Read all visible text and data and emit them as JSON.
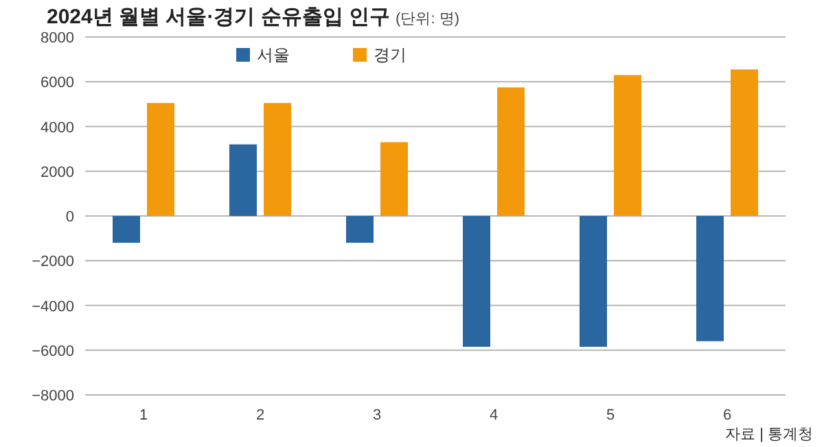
{
  "chart_data": {
    "type": "bar",
    "title": "2024년 월별 서울·경기 순유출입 인구",
    "subtitle": "(단위: 명)",
    "categories": [
      "1",
      "2",
      "3",
      "4",
      "5",
      "6"
    ],
    "series": [
      {
        "name": "서울",
        "color": "#2a67a0",
        "values": [
          -1200,
          3200,
          -1200,
          -5850,
          -5850,
          -5600
        ]
      },
      {
        "name": "경기",
        "color": "#f39a0c",
        "values": [
          5050,
          5050,
          3300,
          5750,
          6300,
          6550
        ]
      }
    ],
    "ylim": [
      -8000,
      8000
    ],
    "yticks": [
      -8000,
      -6000,
      -4000,
      -2000,
      0,
      2000,
      4000,
      6000,
      8000
    ],
    "grid": "y",
    "legend": "top",
    "annotations": [
      "자료 | 통계청"
    ]
  }
}
